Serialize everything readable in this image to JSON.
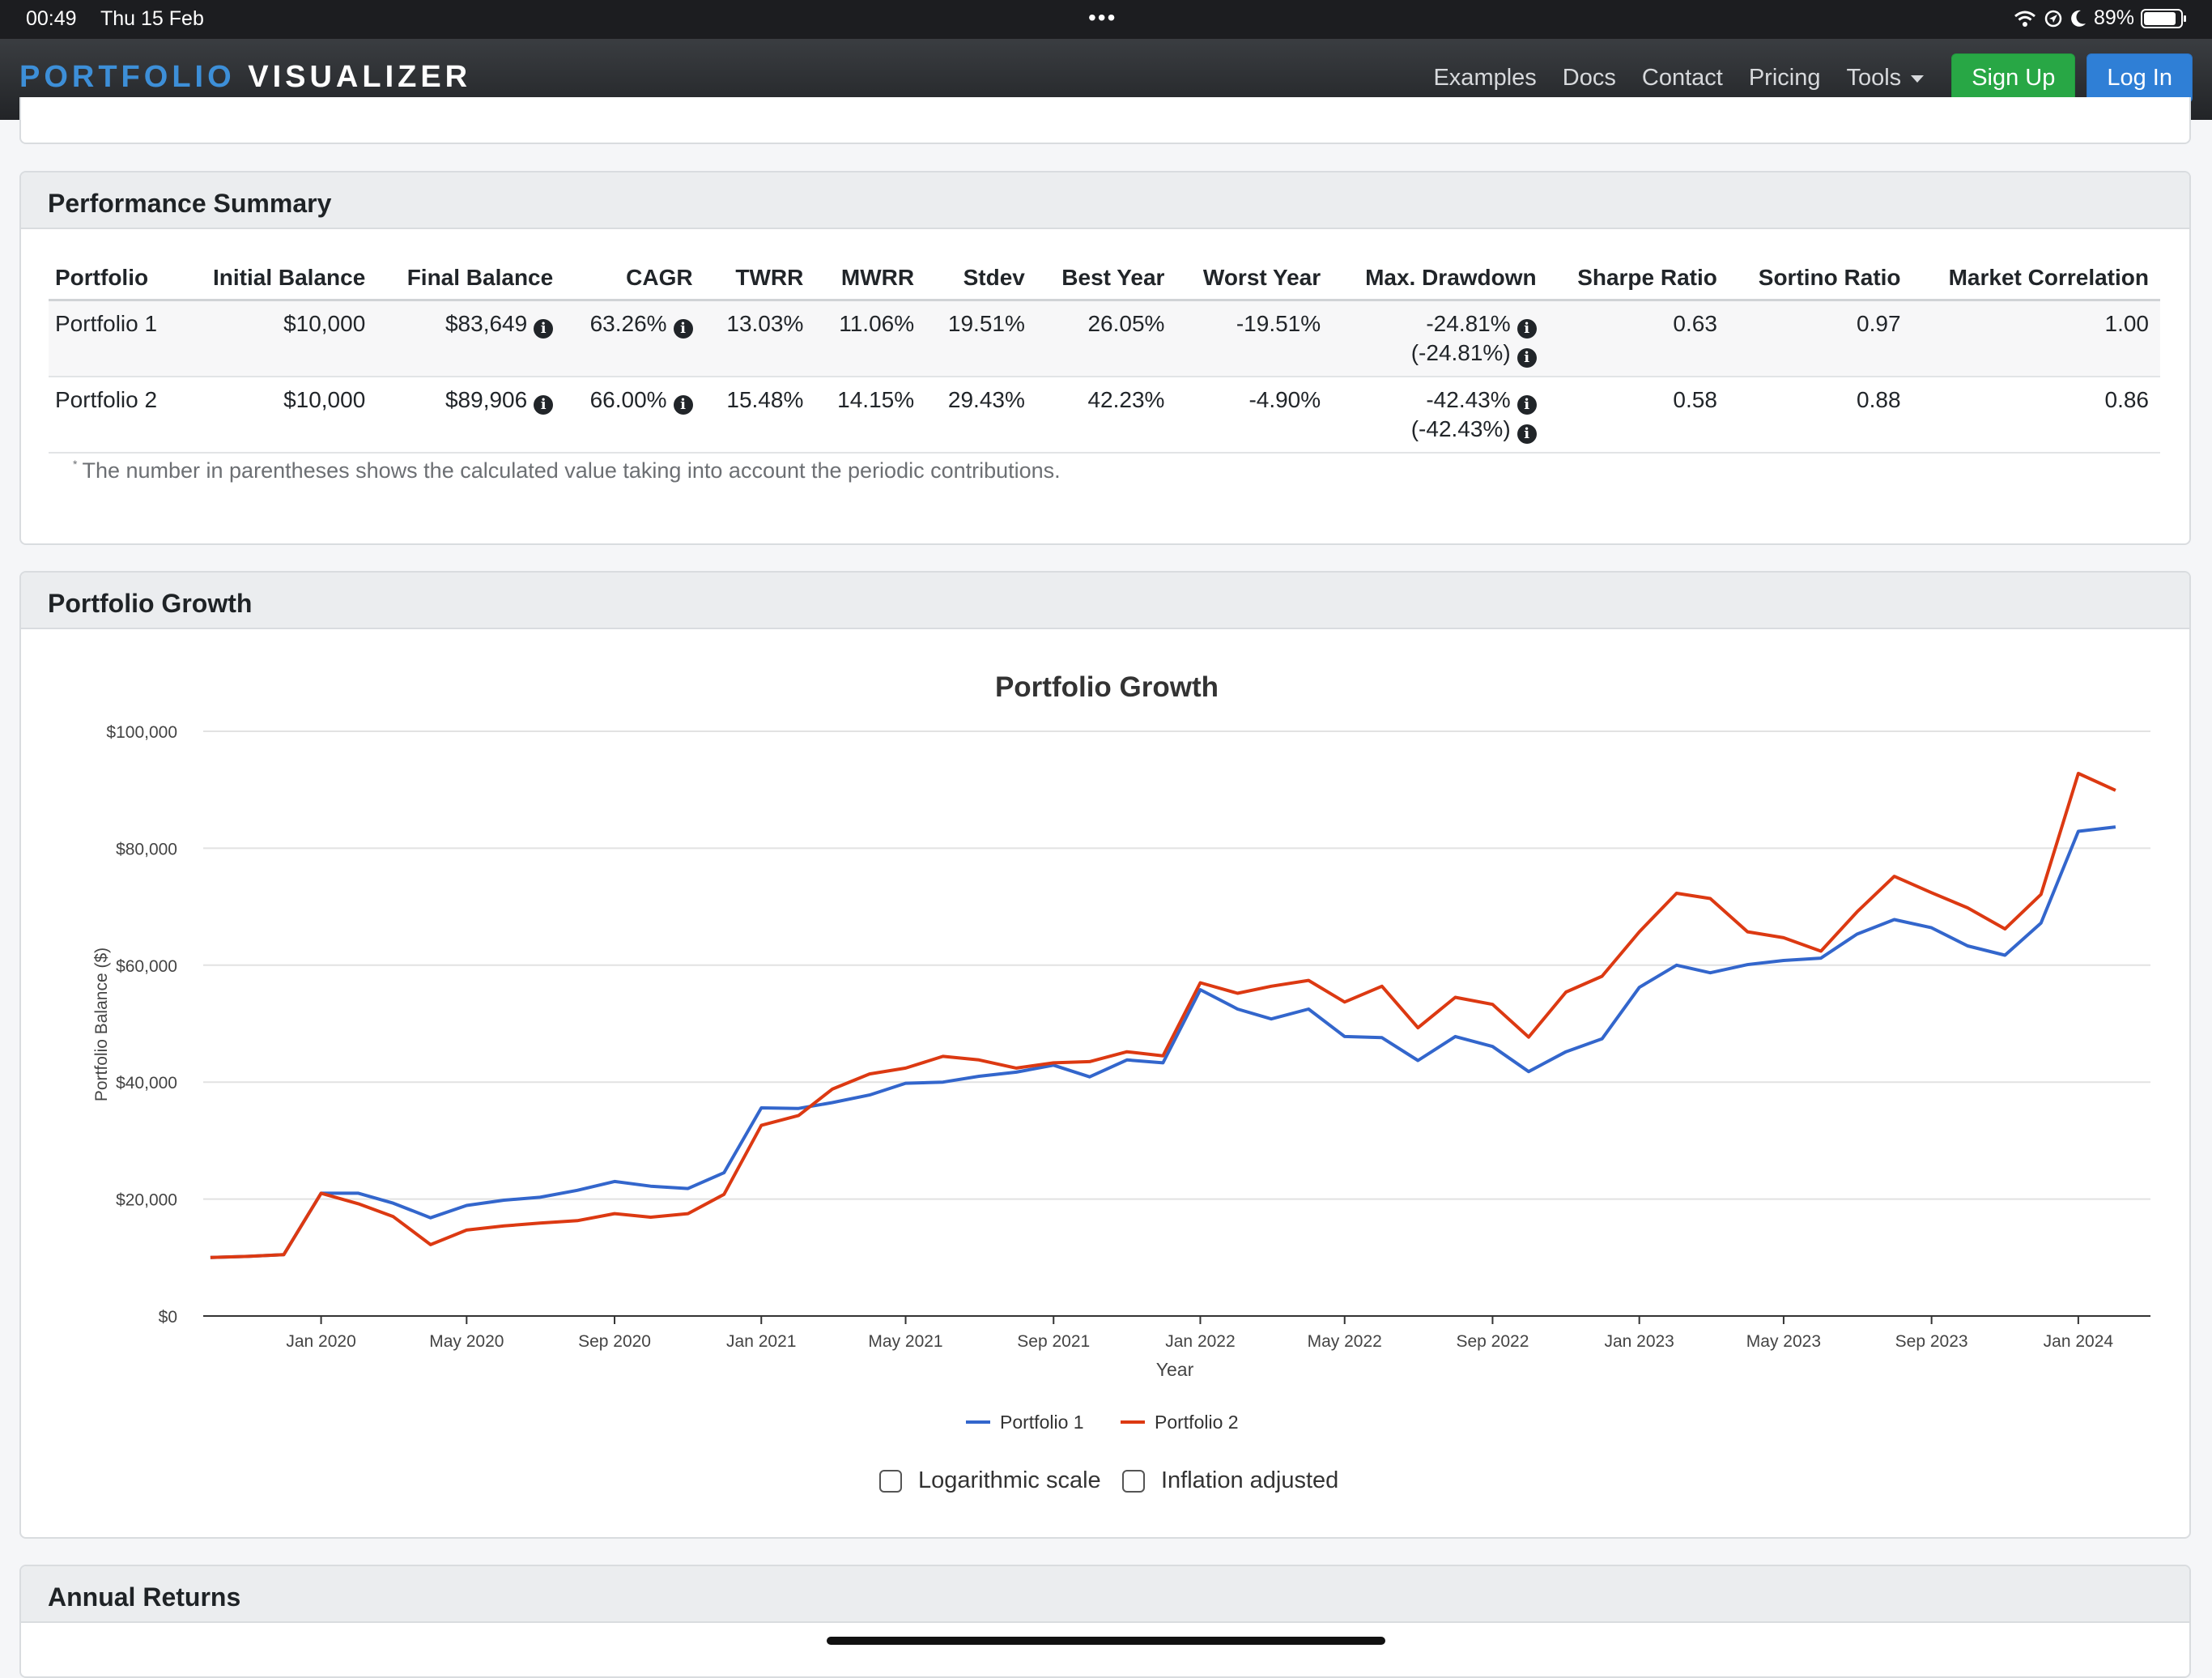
{
  "status_bar": {
    "time": "00:49",
    "date": "Thu 15 Feb",
    "battery_pct": "89%",
    "battery_level": 0.89,
    "icons": [
      "wifi-icon",
      "location-icon",
      "moon-icon",
      "battery-icon"
    ]
  },
  "navbar": {
    "brand_part1": "PORTFOLIO",
    "brand_part2": "VISUALIZER",
    "links": [
      "Examples",
      "Docs",
      "Contact",
      "Pricing",
      "Tools"
    ],
    "signup_label": "Sign Up",
    "login_label": "Log In",
    "colors": {
      "brand_blue": "#3d8fd8",
      "signup": "#28a745",
      "login": "#2f7fd6"
    }
  },
  "performance_summary": {
    "title": "Performance Summary",
    "columns": [
      "Portfolio",
      "Initial Balance",
      "Final Balance",
      "CAGR",
      "TWRR",
      "MWRR",
      "Stdev",
      "Best Year",
      "Worst Year",
      "Max. Drawdown",
      "Sharpe Ratio",
      "Sortino Ratio",
      "Market Correlation"
    ],
    "rows": [
      {
        "portfolio": "Portfolio 1",
        "initial_balance": "$10,000",
        "final_balance": "$83,649",
        "cagr": "63.26%",
        "twrr": "13.03%",
        "mwrr": "11.06%",
        "stdev": "19.51%",
        "best_year": "26.05%",
        "worst_year": "-19.51%",
        "max_drawdown": "-24.81%",
        "max_drawdown_adj": "(-24.81%)",
        "sharpe": "0.63",
        "sortino": "0.97",
        "market_corr": "1.00"
      },
      {
        "portfolio": "Portfolio 2",
        "initial_balance": "$10,000",
        "final_balance": "$89,906",
        "cagr": "66.00%",
        "twrr": "15.48%",
        "mwrr": "14.15%",
        "stdev": "29.43%",
        "best_year": "42.23%",
        "worst_year": "-4.90%",
        "max_drawdown": "-42.43%",
        "max_drawdown_adj": "(-42.43%)",
        "sharpe": "0.58",
        "sortino": "0.88",
        "market_corr": "0.86"
      }
    ],
    "footnote_mark": "*",
    "footnote": "The number in parentheses shows the calculated value taking into account the periodic contributions."
  },
  "portfolio_growth": {
    "panel_title": "Portfolio Growth",
    "options": {
      "log_scale": "Logarithmic scale",
      "inflation": "Inflation adjusted"
    }
  },
  "annual_returns": {
    "title": "Annual Returns"
  },
  "chart_data": {
    "type": "line",
    "title": "Portfolio Growth",
    "xlabel": "Year",
    "ylabel": "Portfolio Balance ($)",
    "ylim": [
      0,
      100000
    ],
    "yticks": [
      0,
      20000,
      40000,
      60000,
      80000,
      100000
    ],
    "ytick_labels": [
      "$0",
      "$20,000",
      "$40,000",
      "$60,000",
      "$80,000",
      "$100,000"
    ],
    "xtick_labels": [
      "Jan 2020",
      "May 2020",
      "Sep 2020",
      "Jan 2021",
      "May 2021",
      "Sep 2021",
      "Jan 2022",
      "May 2022",
      "Sep 2022",
      "Jan 2023",
      "May 2023",
      "Sep 2023",
      "Jan 2024"
    ],
    "x_months": [
      "2019-10",
      "2019-11",
      "2019-12",
      "2020-01",
      "2020-02",
      "2020-03",
      "2020-04",
      "2020-05",
      "2020-06",
      "2020-07",
      "2020-08",
      "2020-09",
      "2020-10",
      "2020-11",
      "2020-12",
      "2021-01",
      "2021-02",
      "2021-03",
      "2021-04",
      "2021-05",
      "2021-06",
      "2021-07",
      "2021-08",
      "2021-09",
      "2021-10",
      "2021-11",
      "2021-12",
      "2022-01",
      "2022-02",
      "2022-03",
      "2022-04",
      "2022-05",
      "2022-06",
      "2022-07",
      "2022-08",
      "2022-09",
      "2022-10",
      "2022-11",
      "2022-12",
      "2023-01",
      "2023-02",
      "2023-03",
      "2023-04",
      "2023-05",
      "2023-06",
      "2023-07",
      "2023-08",
      "2023-09",
      "2023-10",
      "2023-11",
      "2023-12",
      "2024-01",
      "2024-02"
    ],
    "grid": true,
    "legend_position": "bottom-center",
    "series": [
      {
        "name": "Portfolio 1",
        "color": "#3366cc",
        "values": [
          10000,
          10200,
          10500,
          21000,
          21000,
          19300,
          16800,
          18900,
          19800,
          20300,
          21500,
          23000,
          22200,
          21800,
          24500,
          35600,
          35500,
          36500,
          37800,
          39800,
          40000,
          41000,
          41700,
          42900,
          40900,
          43800,
          43300,
          55800,
          52500,
          50800,
          52500,
          47800,
          47600,
          43700,
          47800,
          46100,
          41800,
          45200,
          47400,
          56200,
          60000,
          58700,
          60100,
          60800,
          61200,
          65300,
          67800,
          66400,
          63300,
          61700,
          67200,
          82900,
          83649
        ]
      },
      {
        "name": "Portfolio 2",
        "color": "#dc3912",
        "values": [
          10000,
          10200,
          10500,
          21000,
          19200,
          17000,
          12200,
          14700,
          15400,
          15900,
          16300,
          17500,
          16900,
          17500,
          20800,
          32600,
          34300,
          38800,
          41400,
          42400,
          44400,
          43800,
          42400,
          43300,
          43500,
          45200,
          44500,
          57000,
          55200,
          56400,
          57400,
          53700,
          56400,
          49300,
          54500,
          53300,
          47700,
          55400,
          58100,
          65700,
          72300,
          71400,
          65700,
          64700,
          62400,
          69100,
          75200,
          72400,
          69800,
          66200,
          72100,
          92800,
          89906
        ]
      }
    ]
  }
}
